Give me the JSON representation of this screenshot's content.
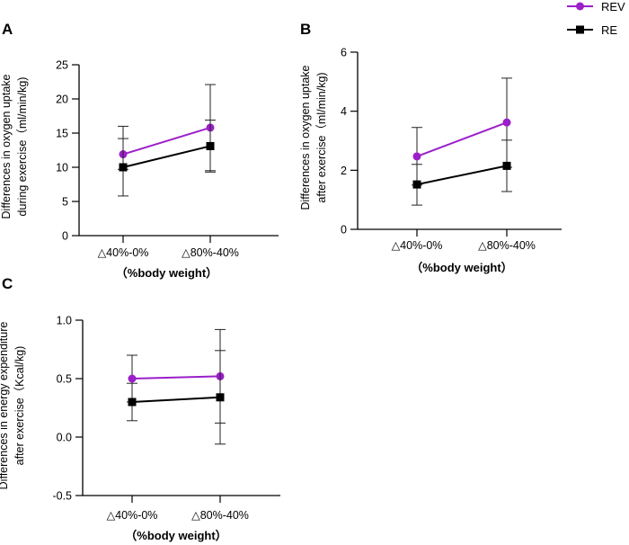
{
  "legend": {
    "entries": [
      {
        "name": "REV",
        "color": "#9B1FC9",
        "marker": "circle"
      },
      {
        "name": "RE",
        "color": "#000000",
        "marker": "square"
      }
    ]
  },
  "chart_data": [
    {
      "panel": "A",
      "type": "line",
      "categories": [
        "△40%-0%",
        "△80%-40%"
      ],
      "xlabel": "（%body weight）",
      "ylabel_lines": [
        "Differences in oxygen uptake",
        "during exercise（ml/min/kg)"
      ],
      "ylim": [
        0,
        25
      ],
      "yticks": [
        0,
        5,
        10,
        15,
        20,
        25
      ],
      "ytick_labels": [
        "0",
        "5",
        "10",
        "15",
        "20",
        "25"
      ],
      "grid": false,
      "series": [
        {
          "name": "REV",
          "values": [
            11.9,
            15.8
          ],
          "err_low": [
            9.7,
            9.5
          ],
          "err_high": [
            14.2,
            22.1
          ]
        },
        {
          "name": "RE",
          "values": [
            10.0,
            13.1
          ],
          "err_low": [
            5.8,
            9.3
          ],
          "err_high": [
            16.0,
            16.9
          ]
        }
      ]
    },
    {
      "panel": "B",
      "type": "line",
      "categories": [
        "△40%-0%",
        "△80%-40%"
      ],
      "xlabel": "（%body weight）",
      "ylabel_lines": [
        "Differences in oxygen uptake",
        "after exercise（ml/min/kg)"
      ],
      "ylim": [
        0,
        6
      ],
      "yticks": [
        0,
        2,
        4,
        6
      ],
      "ytick_labels": [
        "0",
        "2",
        "4",
        "6"
      ],
      "grid": false,
      "series": [
        {
          "name": "REV",
          "values": [
            2.47,
            3.62
          ],
          "err_low": [
            1.5,
            2.1
          ],
          "err_high": [
            3.45,
            5.12
          ]
        },
        {
          "name": "RE",
          "values": [
            1.52,
            2.15
          ],
          "err_low": [
            0.82,
            1.28
          ],
          "err_high": [
            2.2,
            3.02
          ]
        }
      ]
    },
    {
      "panel": "C",
      "type": "line",
      "categories": [
        "△40%-0%",
        "△80%-40%"
      ],
      "xlabel": "（%body weight）",
      "ylabel_lines": [
        "Differences in energy expenditure",
        "after exercise（Kcal/kg)"
      ],
      "ylim": [
        -0.5,
        1.0
      ],
      "yticks": [
        -0.5,
        0.0,
        0.5,
        1.0
      ],
      "ytick_labels": [
        "-0.5",
        "0.0",
        "0.5",
        "1.0"
      ],
      "grid": false,
      "series": [
        {
          "name": "REV",
          "values": [
            0.5,
            0.52
          ],
          "err_low": [
            0.3,
            0.12
          ],
          "err_high": [
            0.7,
            0.92
          ]
        },
        {
          "name": "RE",
          "values": [
            0.3,
            0.34
          ],
          "err_low": [
            0.14,
            -0.06
          ],
          "err_high": [
            0.46,
            0.74
          ]
        }
      ]
    }
  ]
}
